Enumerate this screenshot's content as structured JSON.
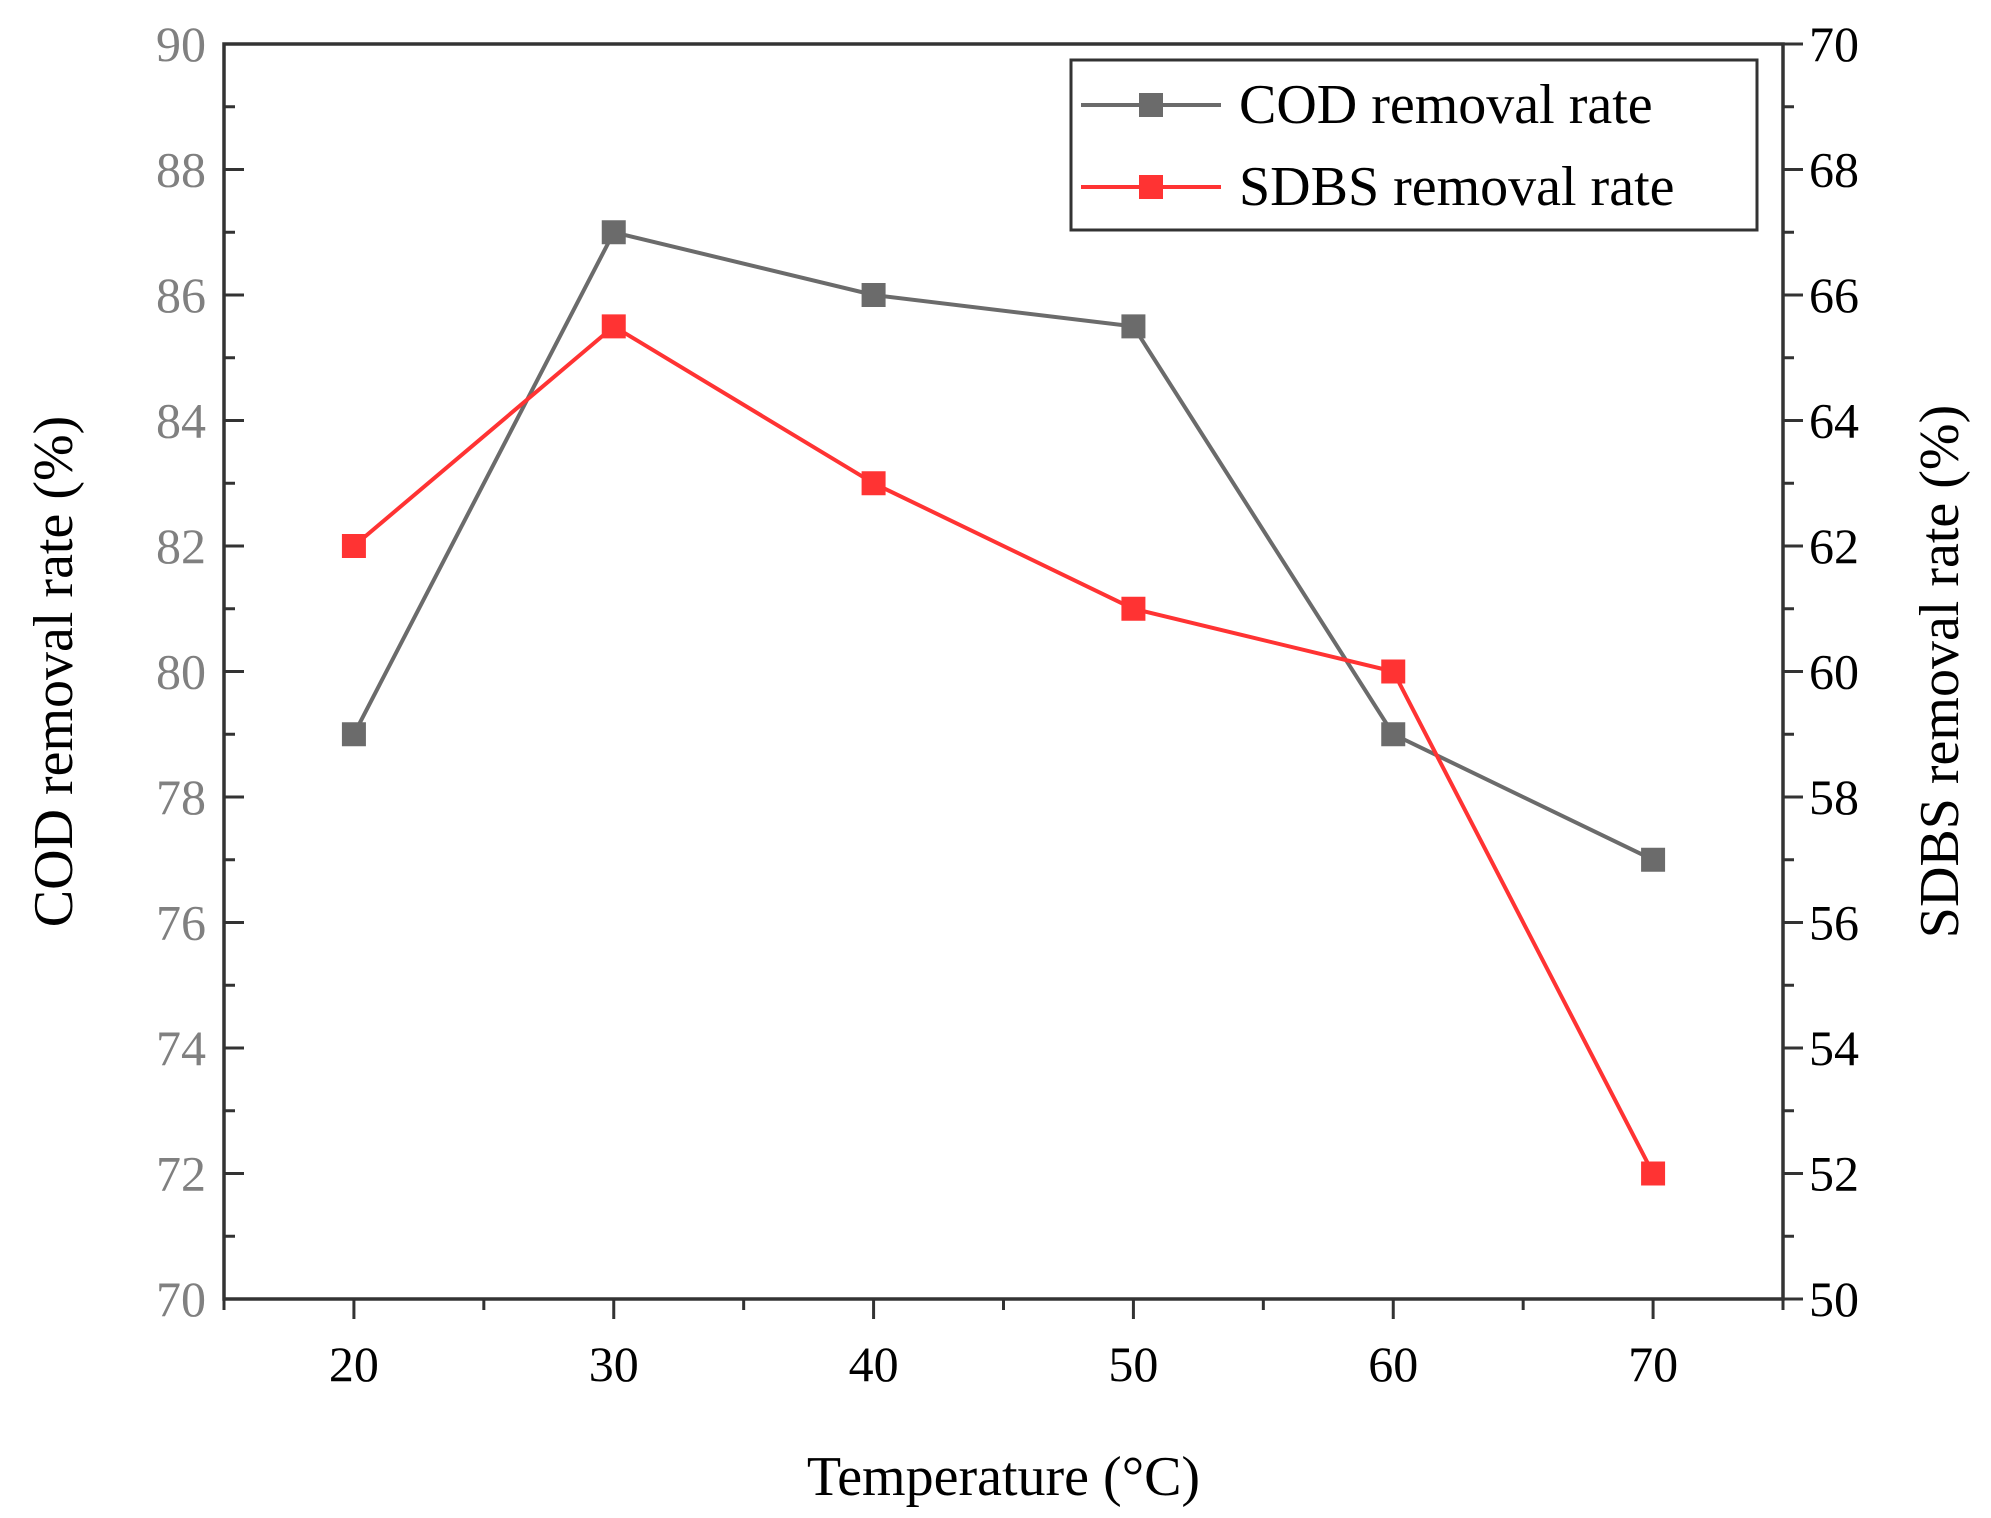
{
  "chart_data": {
    "type": "line",
    "x": [
      20,
      30,
      40,
      50,
      60,
      70
    ],
    "xlabel": "Temperature (°C)",
    "xlim": [
      15,
      75
    ],
    "xticks": [
      "20",
      "30",
      "40",
      "50",
      "60",
      "70"
    ],
    "y_left": {
      "label": "COD removal rate (%)",
      "ylim": [
        70,
        90
      ],
      "ticks": [
        "70",
        "72",
        "74",
        "76",
        "78",
        "80",
        "82",
        "84",
        "86",
        "88",
        "90"
      ],
      "color": "#808080"
    },
    "y_right": {
      "label": "SDBS removal rate (%)",
      "ylim": [
        50,
        70
      ],
      "ticks": [
        "50",
        "52",
        "54",
        "56",
        "58",
        "60",
        "62",
        "64",
        "66",
        "68",
        "70"
      ],
      "color": "#000000"
    },
    "series": [
      {
        "name": "COD removal rate",
        "axis": "left",
        "color": "#6b6b6b",
        "marker": "square",
        "values": [
          79,
          87,
          86,
          85.5,
          79,
          77
        ]
      },
      {
        "name": "SDBS removal rate",
        "axis": "right",
        "color": "#ff3333",
        "marker": "square",
        "values": [
          62,
          65.5,
          63,
          61,
          60,
          52
        ]
      }
    ],
    "legend_position": "top-right",
    "grid": false
  }
}
